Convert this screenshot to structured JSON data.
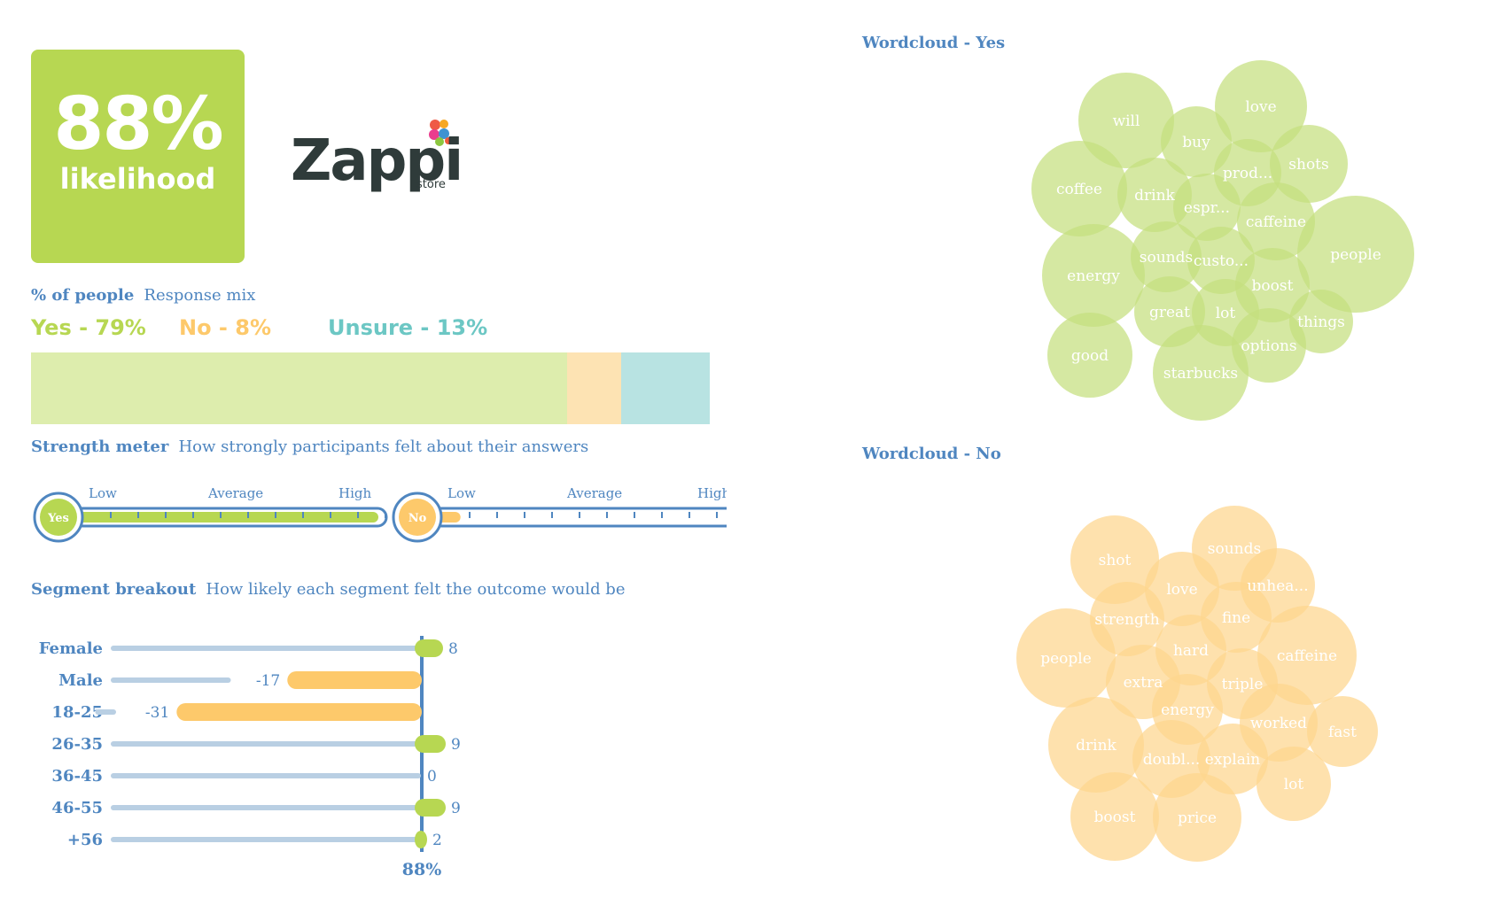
{
  "kpi": {
    "value": "88%",
    "label": "likelihood"
  },
  "logo": {
    "word": "Zappi",
    "sub": "store"
  },
  "response_mix": {
    "title": "% of people",
    "description": "Response mix",
    "items": [
      {
        "label": "Yes - 79%",
        "share": 79,
        "text_color": "#b7d752",
        "bar_color": "#ddedad"
      },
      {
        "label": "No - 8%",
        "share": 8,
        "text_color": "#fdc96b",
        "bar_color": "#fde3b3"
      },
      {
        "label": "Unsure - 13%",
        "share": 13,
        "text_color": "#6cc7c4",
        "bar_color": "#b8e3e2"
      }
    ]
  },
  "strength_meter": {
    "title": "Strength meter",
    "description": "How strongly participants felt about their answers",
    "scale": [
      "Low",
      "Average",
      "High"
    ],
    "meters": [
      {
        "label": "Yes",
        "level": 1.0,
        "color": "#b7d752"
      },
      {
        "label": "No",
        "level": 0.1,
        "color": "#fdc96b"
      }
    ]
  },
  "segment_breakout": {
    "title": "Segment breakout",
    "description": "How likely each segment felt the outcome would be",
    "baseline": "88%",
    "segments": [
      {
        "label": "Female",
        "value": 8,
        "display": "8"
      },
      {
        "label": "Male",
        "value": -17,
        "display": "-17"
      },
      {
        "label": "18-25",
        "value": -31,
        "display": "-31"
      },
      {
        "label": "26-35",
        "value": 9,
        "display": "9"
      },
      {
        "label": "36-45",
        "value": 0,
        "display": "0"
      },
      {
        "label": "46-55",
        "value": 9,
        "display": "9"
      },
      {
        "label": "+56",
        "value": 2,
        "display": "2"
      }
    ],
    "positive_color": "#b7d752",
    "negative_color": "#fdc96b",
    "track_color": "#b9cfe3"
  },
  "wordcloud_yes": {
    "title": "Wordcloud - Yes",
    "color": "#c5df7e",
    "words": [
      "will",
      "love",
      "buy",
      "shots",
      "prod...",
      "coffee",
      "drink",
      "espr...",
      "caffeine",
      "people",
      "energy",
      "sounds",
      "custo...",
      "boost",
      "great",
      "lot",
      "things",
      "good",
      "options",
      "starbucks"
    ]
  },
  "wordcloud_no": {
    "title": "Wordcloud - No",
    "color": "#fdd58e",
    "words": [
      "shot",
      "sounds",
      "love",
      "unhea...",
      "strength",
      "fine",
      "people",
      "hard",
      "caffeine",
      "extra",
      "triple",
      "energy",
      "worked",
      "fast",
      "drink",
      "explain",
      "doubl...",
      "lot",
      "boost",
      "price"
    ]
  }
}
